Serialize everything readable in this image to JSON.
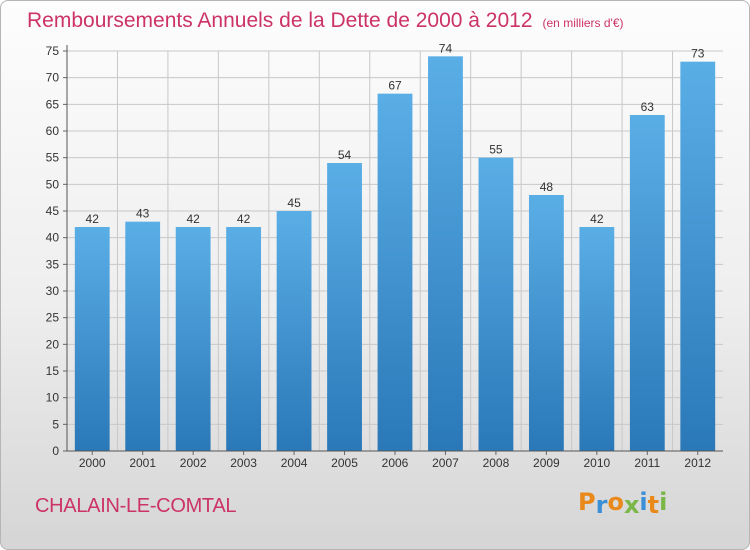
{
  "chart_data": {
    "type": "bar",
    "title": "Remboursements Annuels de la Dette de 2000 à 2012",
    "subtitle": "(en milliers d'€)",
    "categories": [
      "2000",
      "2001",
      "2002",
      "2003",
      "2004",
      "2005",
      "2006",
      "2007",
      "2008",
      "2009",
      "2010",
      "2011",
      "2012"
    ],
    "values": [
      42,
      43,
      42,
      42,
      45,
      54,
      67,
      74,
      55,
      48,
      42,
      63,
      73
    ],
    "ylim": [
      0,
      75
    ],
    "yticks": [
      0,
      5,
      10,
      15,
      20,
      25,
      30,
      35,
      40,
      45,
      50,
      55,
      60,
      65,
      70,
      75
    ],
    "grid": true,
    "bar_color_top": "#5aaee6",
    "bar_color_bottom": "#2a78b8"
  },
  "commune": "CHALAIN-LE-COMTAL",
  "logo": {
    "text": "Proxiti",
    "letters": [
      {
        "ch": "P",
        "color": "#e8891a"
      },
      {
        "ch": "r",
        "color": "#3a8fd6"
      },
      {
        "ch": "o",
        "color": "#e8891a"
      },
      {
        "ch": "x",
        "color": "#7ab648"
      },
      {
        "ch": "i",
        "color": "#3a8fd6"
      },
      {
        "ch": "t",
        "color": "#e8891a"
      },
      {
        "ch": "i",
        "color": "#7ab648"
      }
    ]
  },
  "colors": {
    "title": "#cc3366",
    "grid": "#c8c8c8",
    "axis_text": "#333333"
  }
}
